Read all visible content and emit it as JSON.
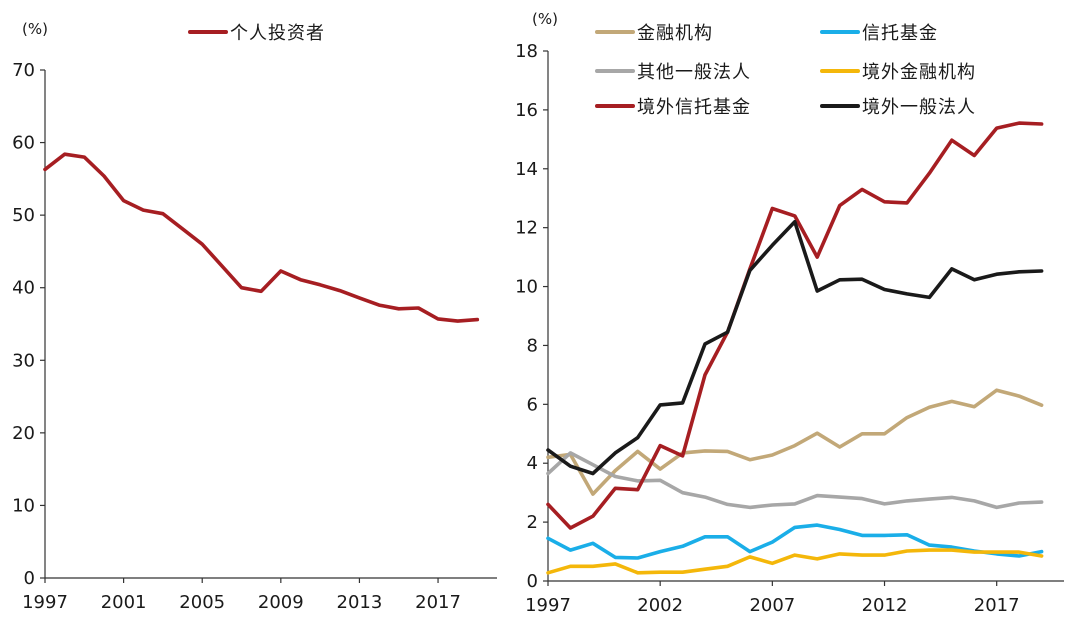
{
  "chart_data": [
    {
      "type": "line",
      "title": "",
      "ylabel": "(%)",
      "ylim": [
        0,
        70
      ],
      "yticks": [
        0,
        10,
        20,
        30,
        40,
        50,
        60,
        70
      ],
      "xlim": [
        1997,
        2020
      ],
      "xticks": [
        1997,
        2001,
        2005,
        2009,
        2013,
        2017
      ],
      "legend_position": "top-center",
      "x": [
        1997,
        1998,
        1999,
        2000,
        2001,
        2002,
        2003,
        2004,
        2005,
        2006,
        2007,
        2008,
        2009,
        2010,
        2011,
        2012,
        2013,
        2014,
        2015,
        2016,
        2017,
        2018,
        2019
      ],
      "series": [
        {
          "name": "个人投资者",
          "color": "#A61E22",
          "values": [
            56.3,
            58.4,
            58.0,
            55.4,
            52.0,
            50.7,
            50.2,
            48.1,
            46.0,
            43.0,
            40.0,
            39.5,
            42.3,
            41.1,
            40.4,
            39.6,
            38.6,
            37.6,
            37.1,
            37.2,
            35.7,
            35.4,
            35.6
          ]
        }
      ]
    },
    {
      "type": "line",
      "title": "",
      "ylabel": "(%)",
      "ylim": [
        0,
        18
      ],
      "yticks": [
        0,
        2,
        4,
        6,
        8,
        10,
        12,
        14,
        16,
        18
      ],
      "xlim": [
        1997,
        2020
      ],
      "xticks": [
        1997,
        2002,
        2007,
        2012,
        2017
      ],
      "legend_position": "top",
      "x": [
        1997,
        1998,
        1999,
        2000,
        2001,
        2002,
        2003,
        2004,
        2005,
        2006,
        2007,
        2008,
        2009,
        2010,
        2011,
        2012,
        2013,
        2014,
        2015,
        2016,
        2017,
        2018,
        2019
      ],
      "series": [
        {
          "name": "金融机构",
          "color": "#C2A878",
          "values": [
            4.2,
            4.3,
            2.95,
            3.75,
            4.4,
            3.8,
            4.35,
            4.42,
            4.4,
            4.12,
            4.28,
            4.6,
            5.02,
            4.55,
            5.0,
            5.0,
            5.55,
            5.9,
            6.1,
            5.92,
            6.48,
            6.28,
            5.97
          ]
        },
        {
          "name": "信托基金",
          "color": "#1AAEE8",
          "values": [
            1.45,
            1.05,
            1.28,
            0.8,
            0.78,
            1.0,
            1.18,
            1.5,
            1.5,
            1.0,
            1.32,
            1.82,
            1.9,
            1.75,
            1.55,
            1.55,
            1.57,
            1.22,
            1.15,
            1.02,
            0.92,
            0.85,
            1.0
          ]
        },
        {
          "name": "其他一般法人",
          "color": "#A7A7A7",
          "values": [
            3.65,
            4.35,
            3.95,
            3.55,
            3.4,
            3.42,
            3.0,
            2.85,
            2.6,
            2.5,
            2.58,
            2.62,
            2.9,
            2.85,
            2.8,
            2.62,
            2.72,
            2.78,
            2.84,
            2.72,
            2.5,
            2.65,
            2.68
          ]
        },
        {
          "name": "境外金融机构",
          "color": "#F4B70A",
          "values": [
            0.28,
            0.5,
            0.5,
            0.58,
            0.28,
            0.3,
            0.3,
            0.4,
            0.5,
            0.82,
            0.6,
            0.88,
            0.75,
            0.92,
            0.88,
            0.88,
            1.02,
            1.05,
            1.05,
            0.98,
            0.98,
            0.98,
            0.85
          ]
        },
        {
          "name": "境外信托基金",
          "color": "#A61E22",
          "values": [
            2.6,
            1.8,
            2.2,
            3.15,
            3.1,
            4.6,
            4.25,
            7.0,
            8.45,
            10.6,
            12.65,
            12.4,
            11.0,
            12.75,
            13.3,
            12.88,
            12.84,
            13.85,
            14.97,
            14.45,
            15.38,
            15.55,
            15.52
          ]
        },
        {
          "name": "境外一般法人",
          "color": "#1A1A1A",
          "values": [
            4.45,
            3.9,
            3.65,
            4.35,
            4.87,
            5.98,
            6.05,
            8.05,
            8.45,
            10.55,
            11.4,
            12.2,
            9.85,
            10.23,
            10.25,
            9.9,
            9.75,
            9.63,
            10.6,
            10.23,
            10.42,
            10.5,
            10.53
          ]
        }
      ]
    }
  ]
}
